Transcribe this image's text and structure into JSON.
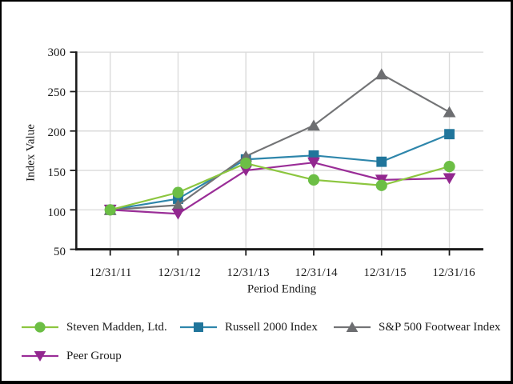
{
  "window": {
    "background": "#ffffff",
    "border_color": "#000000"
  },
  "chart_data": {
    "type": "line",
    "title": "",
    "xlabel": "Period Ending",
    "ylabel": "Index Value",
    "categories": [
      "12/31/11",
      "12/31/12",
      "12/31/13",
      "12/31/14",
      "12/31/15",
      "12/31/16"
    ],
    "y_tick_labels": [
      "300",
      "250",
      "200",
      "150",
      "100",
      "50"
    ],
    "ylim": [
      50,
      300
    ],
    "grid": true,
    "grid_color": "#dbdbdb",
    "axis_color": "#1a1a1a",
    "legend_position": "bottom",
    "draw_order": [
      1,
      2,
      3,
      0
    ],
    "series": [
      {
        "name": "Steven Madden, Ltd.",
        "marker": "circle",
        "color": "#6CBE45",
        "line_color": "#8CC63F",
        "values": [
          100,
          122,
          159,
          138,
          131,
          155
        ]
      },
      {
        "name": "Russell 2000 Index",
        "marker": "square",
        "color": "#20759B",
        "line_color": "#2E86AB",
        "values": [
          100,
          114,
          164,
          169,
          161,
          196
        ]
      },
      {
        "name": "S&P 500 Footwear Index",
        "marker": "triangle-up",
        "color": "#6D6E71",
        "line_color": "#737476",
        "values": [
          100,
          106,
          168,
          207,
          272,
          224
        ]
      },
      {
        "name": "Peer Group",
        "marker": "triangle-down",
        "color": "#92278F",
        "line_color": "#9A2D97",
        "values": [
          100,
          95,
          150,
          160,
          138,
          140
        ]
      }
    ]
  }
}
